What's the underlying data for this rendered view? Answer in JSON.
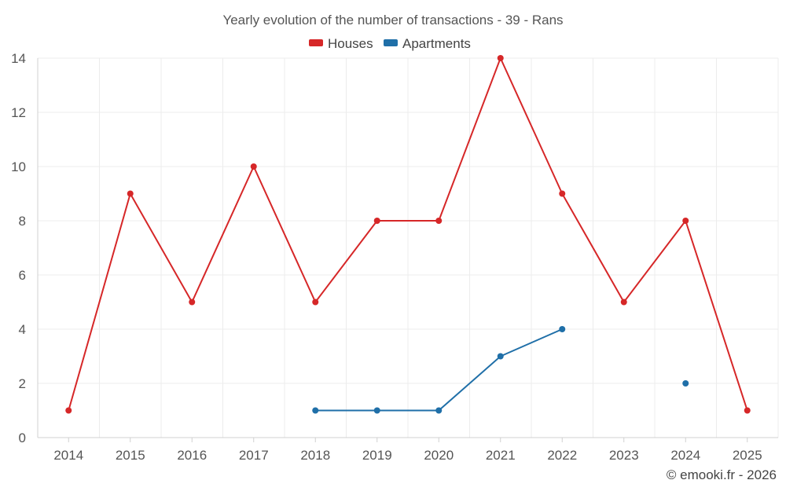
{
  "chart_data": {
    "type": "line",
    "title": "Yearly evolution of the number of transactions - 39 - Rans",
    "xlabel": "",
    "ylabel": "",
    "categories": [
      "2014",
      "2015",
      "2016",
      "2017",
      "2018",
      "2019",
      "2020",
      "2021",
      "2022",
      "2023",
      "2024",
      "2025"
    ],
    "ylim": [
      0,
      14
    ],
    "yticks": [
      0,
      2,
      4,
      6,
      8,
      10,
      12,
      14
    ],
    "grid": true,
    "legend_position": "top-center",
    "series": [
      {
        "name": "Houses",
        "color": "#d62728",
        "values": [
          1,
          9,
          5,
          10,
          5,
          8,
          8,
          14,
          9,
          5,
          8,
          1
        ]
      },
      {
        "name": "Apartments",
        "color": "#1f6fa8",
        "values": [
          null,
          null,
          null,
          null,
          1,
          1,
          1,
          3,
          4,
          null,
          2,
          null
        ]
      }
    ]
  },
  "credit": "© emooki.fr - 2026"
}
